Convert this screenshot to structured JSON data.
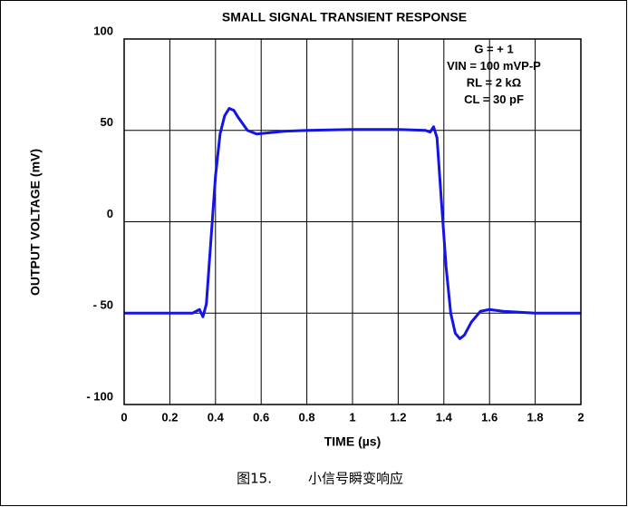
{
  "chart_data": {
    "type": "line",
    "title": "SMALL SIGNAL TRANSIENT RESPONSE",
    "x_label": "TIME (µs)",
    "y_label": "OUTPUT VOLTAGE (mV)",
    "annotations": [
      "G = + 1",
      "VIN = 100 mVP-P",
      "RL = 2 kΩ",
      "CL = 30 pF"
    ],
    "caption": [
      "图15.",
      "小信号瞬变响应"
    ],
    "xlim": [
      0,
      2
    ],
    "xticks": [
      0,
      0.2,
      0.4,
      0.6,
      0.8,
      1,
      1.2,
      1.4,
      1.6,
      1.8,
      2
    ],
    "ylim": [
      -100,
      100
    ],
    "yticks": [
      100,
      50,
      0,
      {
        "value": -50,
        "label": "- 50"
      },
      {
        "value": -100,
        "label": "- 100"
      }
    ],
    "grid": true,
    "series": [
      {
        "color": "#1414e6",
        "x": [
          0,
          0.3,
          0.33,
          0.345,
          0.36,
          0.38,
          0.4,
          0.42,
          0.44,
          0.46,
          0.48,
          0.5,
          0.54,
          0.58,
          0.62,
          0.7,
          0.8,
          1.0,
          1.2,
          1.32,
          1.34,
          1.355,
          1.37,
          1.39,
          1.41,
          1.43,
          1.45,
          1.47,
          1.49,
          1.52,
          1.56,
          1.6,
          1.66,
          1.8,
          2
        ],
        "values": [
          -50,
          -50,
          -48,
          -52,
          -45,
          -10,
          25,
          48,
          58,
          62,
          61,
          57,
          50,
          48,
          48.5,
          49.5,
          50,
          50.5,
          50.5,
          50,
          49,
          52,
          46,
          10,
          -25,
          -50,
          -61,
          -64,
          -62,
          -55,
          -49,
          -48,
          -49,
          -50,
          -50
        ]
      }
    ]
  }
}
